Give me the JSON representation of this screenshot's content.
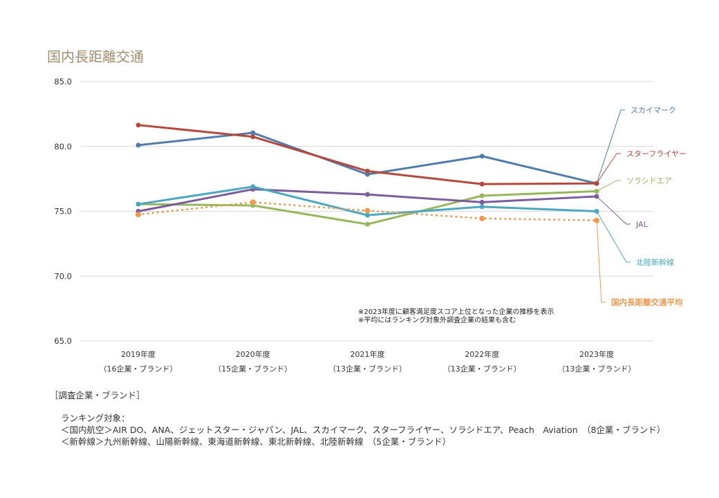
{
  "chart_data": {
    "type": "line",
    "title": "国内長距離交通",
    "categories": [
      "2019年度",
      "2020年度",
      "2021年度",
      "2022年度",
      "2023年度"
    ],
    "category_sublabels": [
      "（16企業・ブランド）",
      "（15企業・ブランド）",
      "（13企業・ブランド）",
      "（13企業・ブランド）",
      "（13企業・ブランド）"
    ],
    "ylim": [
      65,
      85
    ],
    "yticks": [
      "65.0",
      "70.0",
      "75.0",
      "80.0",
      "85.0"
    ],
    "grid": true,
    "legend": "right, leader-line labels",
    "series": [
      {
        "name": "スカイマーク",
        "color": "#4f7bad",
        "style": "solid",
        "values": [
          80.1,
          81.05,
          77.85,
          79.25,
          77.15
        ]
      },
      {
        "name": "スターフライヤー",
        "color": "#b5473b",
        "style": "solid",
        "values": [
          81.65,
          80.75,
          78.1,
          77.1,
          77.15
        ]
      },
      {
        "name": "ソラシドエア",
        "color": "#96b75a",
        "style": "solid",
        "values": [
          75.55,
          75.45,
          74.0,
          76.2,
          76.55
        ]
      },
      {
        "name": "JAL",
        "color": "#7b5c9c",
        "style": "solid",
        "values": [
          75.0,
          76.7,
          76.3,
          75.7,
          76.15
        ]
      },
      {
        "name": "北陸新幹線",
        "color": "#4aa8c0",
        "style": "solid",
        "values": [
          75.55,
          76.9,
          74.7,
          75.35,
          75.0
        ]
      },
      {
        "name": "国内長距離交通平均",
        "color": "#f09a4f",
        "style": "dotted",
        "values": [
          74.75,
          75.7,
          75.05,
          74.45,
          74.3
        ]
      }
    ],
    "annotations": [
      "※2023年度に顧客満足度スコア上位となった企業の推移を表示",
      "※平均にはランキング対象外調査企業の結果も含む"
    ]
  },
  "footer": {
    "heading": "［調査企業・ブランド］",
    "label": "ランキング対象：",
    "line1": "＜国内航空＞AIR DO、ANA、ジェットスター・ジャパン、JAL、スカイマーク、スターフライヤー、ソラシドエア、Peach　Aviation　（8企業・ブランド）",
    "line2": "＜新幹線＞九州新幹線、山陽新幹線、東海道新幹線、東北新幹線、北陸新幹線　（5企業・ブランド）"
  }
}
